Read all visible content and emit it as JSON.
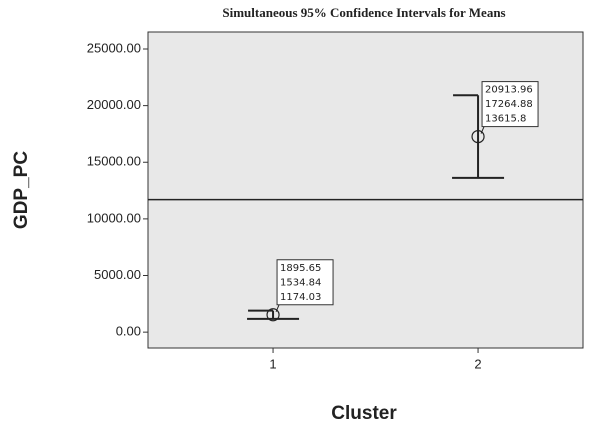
{
  "chart_data": {
    "type": "errorbar",
    "title": "Simultaneous 95% Confidence Intervals for Means",
    "x_label": "Cluster",
    "y_label": "GDP_PC",
    "categories": [
      "1",
      "2"
    ],
    "values": [
      1534.84,
      17264.88
    ],
    "upper": [
      1895.65,
      20913.96
    ],
    "lower": [
      1174.03,
      13615.8
    ],
    "reference_line": 11700,
    "ylim": [
      -1400,
      26500
    ],
    "yticks": [
      {
        "value": 0,
        "label": "0.00"
      },
      {
        "value": 5000,
        "label": "5000.00"
      },
      {
        "value": 10000,
        "label": "10000.00"
      },
      {
        "value": 15000,
        "label": "15000.00"
      },
      {
        "value": 20000,
        "label": "20000.00"
      },
      {
        "value": 25000,
        "label": "25000.00"
      }
    ],
    "color": "#222222",
    "background": "#e8e8e8"
  }
}
